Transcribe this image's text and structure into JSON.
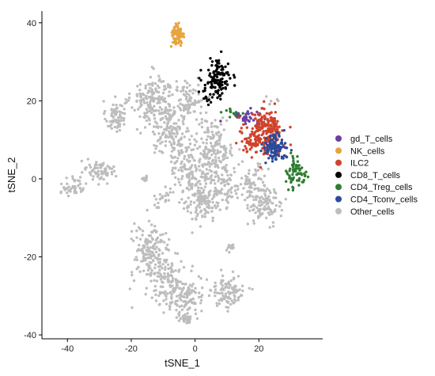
{
  "chart_data": {
    "type": "scatter",
    "title": "",
    "xlabel": "tSNE_1",
    "ylabel": "tSNE_2",
    "xlim": [
      -48,
      40
    ],
    "ylim": [
      -41,
      43
    ],
    "xticks": [
      -40,
      -20,
      0,
      20
    ],
    "yticks": [
      -40,
      -20,
      0,
      20,
      40
    ],
    "xtick_labels": [
      "-40",
      "-20",
      "0",
      "20"
    ],
    "ytick_labels": [
      "-40",
      "-20",
      "0",
      "20",
      "40"
    ],
    "grid": false,
    "legend_position": "right",
    "series": [
      {
        "name": "gd_T_cells",
        "color": "#6B3FA0",
        "clusters": [
          {
            "cx": 16,
            "cy": 16,
            "sx": 2.5,
            "sy": 1.2,
            "n": 40
          }
        ]
      },
      {
        "name": "NK_cells",
        "color": "#E8A33D",
        "clusters": [
          {
            "cx": -5.5,
            "cy": 36.5,
            "sx": 1.0,
            "sy": 1.6,
            "n": 70
          }
        ]
      },
      {
        "name": "ILC2",
        "color": "#D0432B",
        "clusters": [
          {
            "cx": 22,
            "cy": 12,
            "sx": 3.0,
            "sy": 2.8,
            "n": 230
          },
          {
            "cx": 17.5,
            "cy": 9,
            "sx": 1.4,
            "sy": 1.4,
            "n": 30
          }
        ]
      },
      {
        "name": "CD8_T_cells",
        "color": "#000000",
        "clusters": [
          {
            "cx": 7,
            "cy": 25.5,
            "sx": 2.3,
            "sy": 2.5,
            "n": 120
          },
          {
            "cx": 4,
            "cy": 20,
            "sx": 0.8,
            "sy": 1.0,
            "n": 8
          }
        ]
      },
      {
        "name": "CD4_Treg_cells",
        "color": "#2E7D32",
        "clusters": [
          {
            "cx": 32,
            "cy": 1.5,
            "sx": 1.5,
            "sy": 2.0,
            "n": 70
          },
          {
            "cx": 12,
            "cy": 17,
            "sx": 1.5,
            "sy": 0.6,
            "n": 12
          }
        ]
      },
      {
        "name": "CD4_Tconv_cells",
        "color": "#2B4A9A",
        "clusters": [
          {
            "cx": 24.5,
            "cy": 8,
            "sx": 1.8,
            "sy": 1.6,
            "n": 110
          }
        ]
      },
      {
        "name": "Other_cells",
        "color": "#BDBDBD",
        "clusters": [
          {
            "cx": -25,
            "cy": 16,
            "sx": 1.5,
            "sy": 2.0,
            "n": 70
          },
          {
            "cx": -13,
            "cy": 20,
            "sx": 3.5,
            "sy": 3.2,
            "n": 180
          },
          {
            "cx": -2,
            "cy": 20,
            "sx": 2.5,
            "sy": 3.0,
            "n": 90
          },
          {
            "cx": -8,
            "cy": 12,
            "sx": 3.0,
            "sy": 3.0,
            "n": 110
          },
          {
            "cx": 6,
            "cy": 8,
            "sx": 3.0,
            "sy": 4.0,
            "n": 170
          },
          {
            "cx": -3,
            "cy": 4,
            "sx": 2.5,
            "sy": 3.0,
            "n": 90
          },
          {
            "cx": 2,
            "cy": -4,
            "sx": 3.0,
            "sy": 3.5,
            "n": 170
          },
          {
            "cx": 10,
            "cy": -2,
            "sx": 2.0,
            "sy": 3.0,
            "n": 60
          },
          {
            "cx": 18,
            "cy": -2,
            "sx": 2.5,
            "sy": 2.5,
            "n": 80
          },
          {
            "cx": 22,
            "cy": -7,
            "sx": 2.5,
            "sy": 2.0,
            "n": 90
          },
          {
            "cx": -30,
            "cy": 2,
            "sx": 2.5,
            "sy": 1.5,
            "n": 70
          },
          {
            "cx": -38,
            "cy": -2,
            "sx": 2.0,
            "sy": 1.0,
            "n": 45
          },
          {
            "cx": -16,
            "cy": 0,
            "sx": 0.6,
            "sy": 0.5,
            "n": 10
          },
          {
            "cx": -10,
            "cy": -5,
            "sx": 1.5,
            "sy": 1.5,
            "n": 20
          },
          {
            "cx": -14,
            "cy": -19,
            "sx": 3.0,
            "sy": 3.5,
            "n": 160
          },
          {
            "cx": -8,
            "cy": -26,
            "sx": 3.0,
            "sy": 2.5,
            "n": 110
          },
          {
            "cx": -3,
            "cy": -31,
            "sx": 3.0,
            "sy": 2.5,
            "n": 100
          },
          {
            "cx": 10,
            "cy": -29,
            "sx": 3.0,
            "sy": 2.2,
            "n": 100
          },
          {
            "cx": 11,
            "cy": -17.5,
            "sx": 0.8,
            "sy": 0.6,
            "n": 12
          },
          {
            "cx": -3,
            "cy": -36,
            "sx": 1.5,
            "sy": 1.0,
            "n": 25
          },
          {
            "cx": 24,
            "cy": 20,
            "sx": 1.0,
            "sy": 1.0,
            "n": 6
          }
        ]
      }
    ]
  }
}
